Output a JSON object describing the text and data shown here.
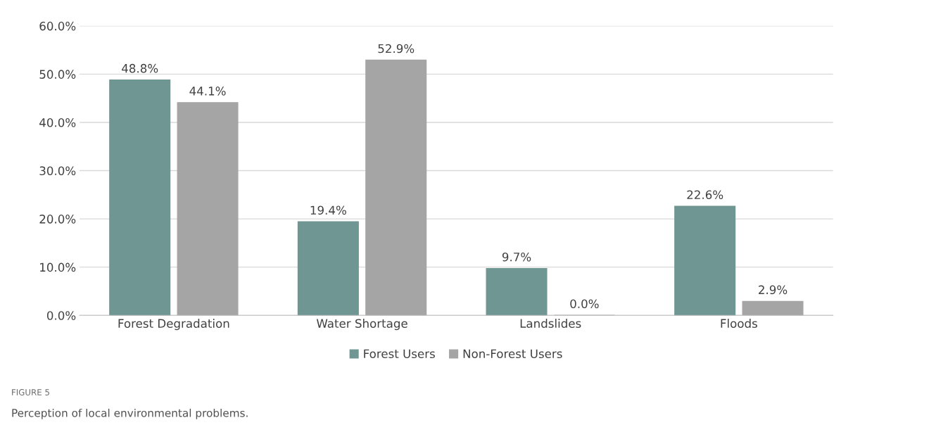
{
  "chart_data": {
    "type": "bar",
    "categories": [
      "Forest Degradation",
      "Water Shortage",
      "Landslides",
      "Floods"
    ],
    "series": [
      {
        "name": "Forest Users",
        "color": "#6f9692",
        "values": [
          48.8,
          19.4,
          9.7,
          22.6
        ],
        "value_labels": [
          "48.8%",
          "19.4%",
          "9.7%",
          "22.6%"
        ]
      },
      {
        "name": "Non-Forest Users",
        "color": "#a5a5a5",
        "values": [
          44.1,
          52.9,
          0.0,
          2.9
        ],
        "value_labels": [
          "44.1%",
          "52.9%",
          "0.0%",
          "2.9%"
        ]
      }
    ],
    "ylim": [
      0,
      60
    ],
    "yticks": [
      {
        "value": 0,
        "label": "0.0%"
      },
      {
        "value": 10,
        "label": "10.0%"
      },
      {
        "value": 20,
        "label": "20.0%"
      },
      {
        "value": 30,
        "label": "30.0%"
      },
      {
        "value": 40,
        "label": "40.0%"
      },
      {
        "value": 50,
        "label": "50.0%"
      },
      {
        "value": 60,
        "label": "60.0%"
      }
    ],
    "grid": "y",
    "legend": "bottom",
    "annotations": [
      "FIGURE 5",
      "Perception of local environmental problems."
    ]
  }
}
